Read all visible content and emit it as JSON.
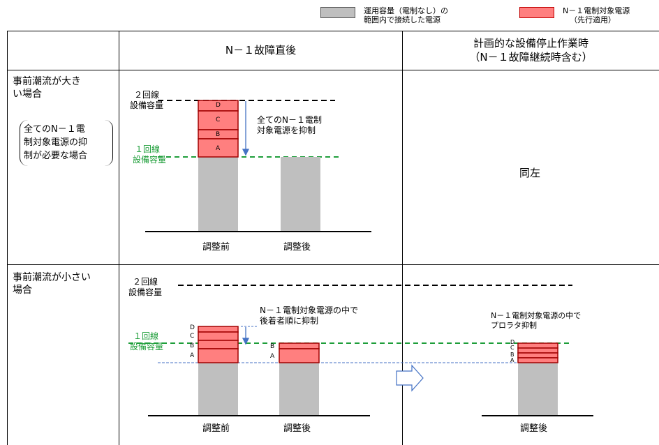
{
  "legend": {
    "gray_label_line1": "運用容量（電制なし）の",
    "gray_label_line2": "範囲内で接続した電源",
    "pink_label_line1": "N－１電制対象電源",
    "pink_label_line2": "（先行適用）",
    "gray_color": "#bfbfbf",
    "pink_color": "#ff7f7f"
  },
  "header": {
    "col_after_fault": "N－１故障直後",
    "col_planned_line1": "計画的な設備停止作業時",
    "col_planned_line2": "（N－１故障継続時含む）"
  },
  "row1": {
    "label_line1": "事前潮流が大き",
    "label_line2": "い場合",
    "note_line1": "全てのN－１電",
    "note_line2": "制対象電源の抑",
    "note_line3": "制が必要な場合",
    "cap2_line1": "２回線",
    "cap2_line2": "設備容量",
    "cap1_line1": "１回線",
    "cap1_line2": "設備容量",
    "segments": [
      "D",
      "C",
      "B",
      "A"
    ],
    "annotation_line1": "全てのN－１電制",
    "annotation_line2": "対象電源を抑制",
    "x_before": "調整前",
    "x_after": "調整後",
    "same_as_left": "同左"
  },
  "row2": {
    "label_line1": "事前潮流が小さい",
    "label_line2": "場合",
    "cap2_line1": "２回線",
    "cap2_line2": "設備容量",
    "cap1_line1": "１回線",
    "cap1_line2": "設備容量",
    "segments_before": [
      "D",
      "C",
      "B",
      "A"
    ],
    "segments_after": [
      "B",
      "A"
    ],
    "segments_right": [
      "D",
      "C",
      "B",
      "A"
    ],
    "annotation_line1": "N－１電制対象電源の中で",
    "annotation_line2": "後着者順に抑制",
    "right_annotation_line1": "N－１電制対象電源の中で",
    "right_annotation_line2": "プロラタ抑制",
    "x_before": "調整前",
    "x_after": "調整後",
    "x_right": "調整後"
  },
  "colors": {
    "green": "#1e9e3a",
    "blue": "#4472c4",
    "gray": "#bfbfbf",
    "pink": "#ff7f7f",
    "dark_red": "#a00000"
  }
}
